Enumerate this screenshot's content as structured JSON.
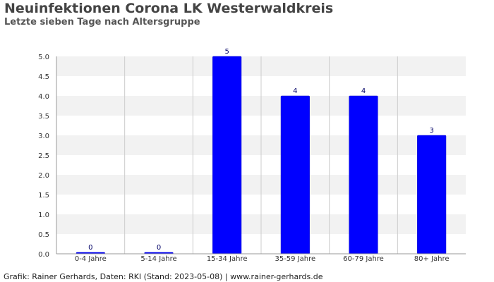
{
  "header": {
    "title": "Neuinfektionen Corona LK Westerwaldkreis",
    "subtitle": "Letzte sieben Tage nach Altersgruppe"
  },
  "footer": {
    "text": "Grafik: Rainer Gerhards, Daten: RKI (Stand: 2023-05-08) | www.rainer-gerhards.de"
  },
  "chart_data": {
    "type": "bar",
    "title": "Neuinfektionen Corona LK Westerwaldkreis",
    "subtitle": "Letzte sieben Tage nach Altersgruppe",
    "xlabel": "",
    "ylabel": "",
    "categories": [
      "0-4 Jahre",
      "5-14 Jahre",
      "15-34 Jahre",
      "35-59 Jahre",
      "60-79 Jahre",
      "80+ Jahre"
    ],
    "values": [
      0,
      0,
      5,
      4,
      4,
      3
    ],
    "ylim": [
      0,
      5
    ],
    "yticks": [
      "0.0",
      "0.5",
      "1.0",
      "1.5",
      "2.0",
      "2.5",
      "3.0",
      "3.5",
      "4.0",
      "4.5",
      "5.0"
    ],
    "grid": true,
    "legend": "none",
    "colors": {
      "bar": "#0000ff",
      "band": "#f2f2f2",
      "grid": "#cccccc",
      "axis": "#999999",
      "data_label": "#000066"
    }
  }
}
